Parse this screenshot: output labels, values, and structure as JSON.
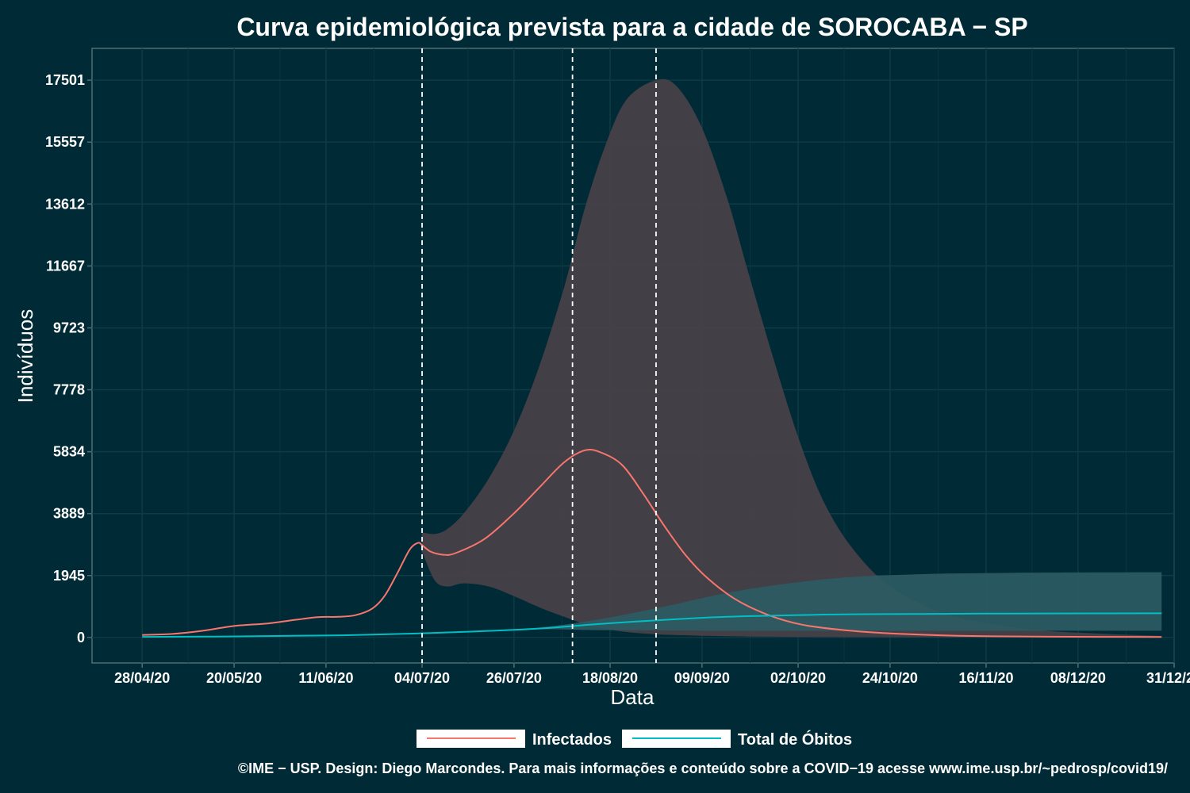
{
  "chart_data": {
    "type": "line",
    "title": "Curva epidemiológica prevista para a cidade de SOROCABA − SP",
    "xlabel": "Data",
    "ylabel": "Indivíduos",
    "x_ticks": [
      "28/04/20",
      "20/05/20",
      "11/06/20",
      "04/07/20",
      "26/07/20",
      "18/08/20",
      "09/09/20",
      "02/10/20",
      "24/10/20",
      "16/11/20",
      "08/12/20",
      "31/12/20"
    ],
    "y_ticks": [
      0,
      1945,
      3889,
      5834,
      7778,
      9723,
      11667,
      13612,
      15557,
      17501
    ],
    "xlim": [
      "2020-04-16",
      "2020-12-31"
    ],
    "ylim": [
      -800,
      18500
    ],
    "grid": true,
    "legend_position": "bottom",
    "vlines": [
      "2020-07-04",
      "2020-08-09",
      "2020-08-29"
    ],
    "series": [
      {
        "name": "Infectados",
        "color": "#f8766d",
        "points": [
          [
            "2020-04-28",
            80
          ],
          [
            "2020-05-05",
            110
          ],
          [
            "2020-05-12",
            200
          ],
          [
            "2020-05-20",
            360
          ],
          [
            "2020-05-28",
            440
          ],
          [
            "2020-06-04",
            560
          ],
          [
            "2020-06-09",
            640
          ],
          [
            "2020-06-14",
            650
          ],
          [
            "2020-06-18",
            700
          ],
          [
            "2020-06-22",
            900
          ],
          [
            "2020-06-25",
            1300
          ],
          [
            "2020-06-28",
            2000
          ],
          [
            "2020-07-01",
            2750
          ],
          [
            "2020-07-03",
            2970
          ],
          [
            "2020-07-04",
            2900
          ],
          [
            "2020-07-06",
            2700
          ],
          [
            "2020-07-09",
            2600
          ],
          [
            "2020-07-12",
            2650
          ],
          [
            "2020-07-19",
            3100
          ],
          [
            "2020-07-26",
            3900
          ],
          [
            "2020-08-01",
            4700
          ],
          [
            "2020-08-07",
            5500
          ],
          [
            "2020-08-12",
            5880
          ],
          [
            "2020-08-16",
            5800
          ],
          [
            "2020-08-21",
            5400
          ],
          [
            "2020-08-26",
            4500
          ],
          [
            "2020-08-31",
            3500
          ],
          [
            "2020-09-05",
            2600
          ],
          [
            "2020-09-10",
            1900
          ],
          [
            "2020-09-17",
            1200
          ],
          [
            "2020-09-25",
            700
          ],
          [
            "2020-10-03",
            400
          ],
          [
            "2020-10-13",
            230
          ],
          [
            "2020-10-24",
            130
          ],
          [
            "2020-11-05",
            70
          ],
          [
            "2020-11-16",
            40
          ],
          [
            "2020-12-01",
            25
          ],
          [
            "2020-12-28",
            15
          ]
        ]
      },
      {
        "name": "Total de Óbitos",
        "color": "#00bfc4",
        "points": [
          [
            "2020-04-28",
            20
          ],
          [
            "2020-05-15",
            30
          ],
          [
            "2020-06-01",
            50
          ],
          [
            "2020-06-15",
            70
          ],
          [
            "2020-07-01",
            120
          ],
          [
            "2020-07-15",
            180
          ],
          [
            "2020-08-01",
            280
          ],
          [
            "2020-08-15",
            420
          ],
          [
            "2020-09-01",
            560
          ],
          [
            "2020-09-15",
            650
          ],
          [
            "2020-10-01",
            700
          ],
          [
            "2020-10-15",
            730
          ],
          [
            "2020-11-01",
            740
          ],
          [
            "2020-11-15",
            750
          ],
          [
            "2020-12-01",
            755
          ],
          [
            "2020-12-28",
            760
          ]
        ]
      }
    ],
    "ribbons": [
      {
        "series": "Infectados",
        "color": "#4a4148",
        "points": [
          [
            "2020-07-04",
            2700,
            3300
          ],
          [
            "2020-07-07",
            1800,
            3250
          ],
          [
            "2020-07-10",
            1600,
            3400
          ],
          [
            "2020-07-14",
            1700,
            3900
          ],
          [
            "2020-07-20",
            1600,
            5000
          ],
          [
            "2020-07-26",
            1300,
            6500
          ],
          [
            "2020-08-01",
            950,
            8500
          ],
          [
            "2020-08-07",
            650,
            11000
          ],
          [
            "2020-08-12",
            420,
            13500
          ],
          [
            "2020-08-17",
            270,
            15500
          ],
          [
            "2020-08-22",
            170,
            16900
          ],
          [
            "2020-08-29",
            100,
            17501
          ],
          [
            "2020-09-03",
            75,
            17300
          ],
          [
            "2020-09-09",
            55,
            16000
          ],
          [
            "2020-09-15",
            40,
            13800
          ],
          [
            "2020-09-20",
            30,
            11500
          ],
          [
            "2020-09-26",
            25,
            8800
          ],
          [
            "2020-10-02",
            20,
            6300
          ],
          [
            "2020-10-08",
            15,
            4300
          ],
          [
            "2020-10-15",
            12,
            2800
          ],
          [
            "2020-10-24",
            10,
            1600
          ],
          [
            "2020-11-05",
            8,
            800
          ],
          [
            "2020-11-16",
            6,
            450
          ],
          [
            "2020-12-01",
            5,
            200
          ],
          [
            "2020-12-28",
            5,
            50
          ]
        ]
      },
      {
        "series": "Total de Óbitos",
        "color": "#2d5c64",
        "points": [
          [
            "2020-07-01",
            120,
            120
          ],
          [
            "2020-07-20",
            190,
            200
          ],
          [
            "2020-08-01",
            260,
            310
          ],
          [
            "2020-08-15",
            230,
            560
          ],
          [
            "2020-09-01",
            220,
            1000
          ],
          [
            "2020-09-15",
            210,
            1400
          ],
          [
            "2020-10-01",
            210,
            1720
          ],
          [
            "2020-10-15",
            210,
            1900
          ],
          [
            "2020-11-01",
            210,
            1990
          ],
          [
            "2020-11-15",
            210,
            2020
          ],
          [
            "2020-12-01",
            210,
            2040
          ],
          [
            "2020-12-28",
            210,
            2050
          ]
        ]
      }
    ]
  },
  "caption": "©IME − USP. Design: Diego Marcondes. Para mais informações e conteúdo sobre a COVID−19 acesse www.ime.usp.br/~pedrosp/covid19/"
}
